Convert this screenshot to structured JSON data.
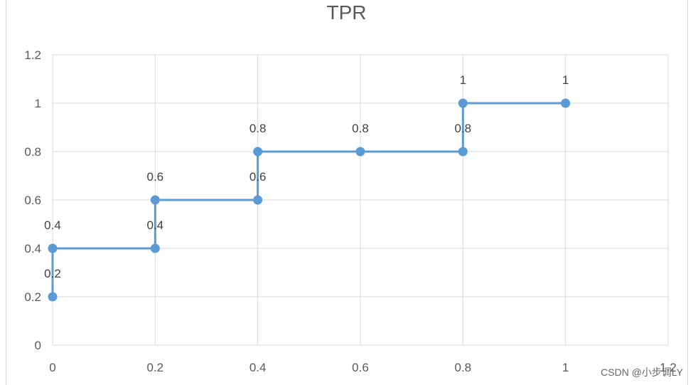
{
  "chart_data": {
    "type": "line",
    "title": "TPR",
    "xlabel": "",
    "ylabel": "",
    "xlim": [
      0,
      1.2
    ],
    "ylim": [
      0,
      1.2
    ],
    "x_ticks": [
      "0",
      "0.2",
      "0.4",
      "0.6",
      "0.8",
      "1",
      "1.2"
    ],
    "y_ticks": [
      "0",
      "0.2",
      "0.4",
      "0.6",
      "0.8",
      "1",
      "1.2"
    ],
    "grid": true,
    "legend": "none",
    "series": [
      {
        "x": [
          0,
          0,
          0.2,
          0.2,
          0.4,
          0.4,
          0.6,
          0.8,
          0.8,
          1
        ],
        "y": [
          0.2,
          0.4,
          0.4,
          0.6,
          0.6,
          0.8,
          0.8,
          0.8,
          1,
          1
        ],
        "data_labels": [
          "0.2",
          "0.4",
          "0.4",
          "0.6",
          "0.6",
          "0.8",
          "0.8",
          "0.8",
          "1",
          "1"
        ],
        "color": "#5b9bd5"
      }
    ]
  },
  "watermark": "CSDN @小步调LY"
}
